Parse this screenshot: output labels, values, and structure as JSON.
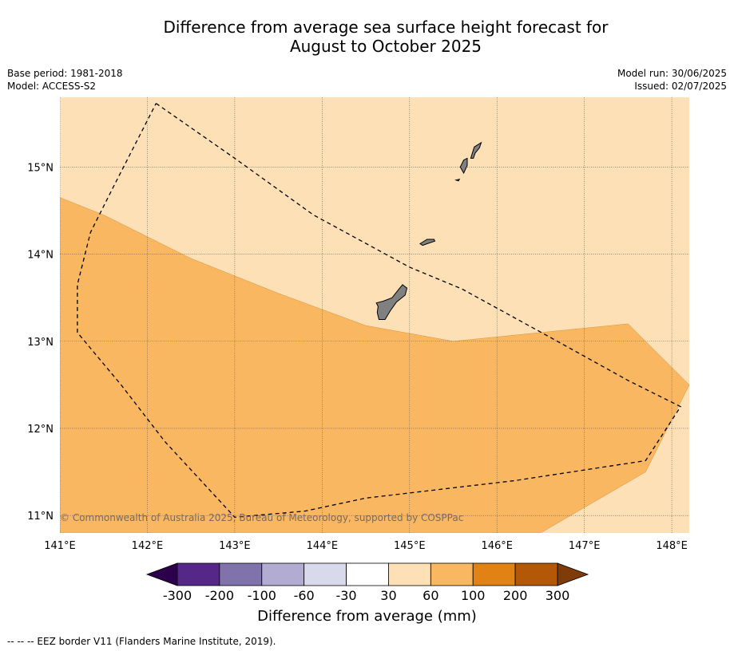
{
  "title_line1": "Difference from average sea surface height forecast for",
  "title_line2": "August to October 2025",
  "base_period": "Base period: 1981-2018",
  "model": "Model: ACCESS-S2",
  "model_run": "Model run: 30/06/2025",
  "issued": "Issued: 02/07/2025",
  "copyright": "© Commonwealth of Australia 2025, Bureau of Meteorology, supported by COSPPac",
  "colorbar_title": "Difference from average (mm)",
  "footnote": "--  --  -- EEZ border V11 (Flanders Marine Institute, 2019).",
  "map": {
    "lon_range": [
      141.0,
      148.2
    ],
    "lat_range": [
      10.8,
      15.8
    ],
    "lon_ticks": [
      {
        "value": 141,
        "label": "141°E"
      },
      {
        "value": 142,
        "label": "142°E"
      },
      {
        "value": 143,
        "label": "143°E"
      },
      {
        "value": 144,
        "label": "144°E"
      },
      {
        "value": 145,
        "label": "145°E"
      },
      {
        "value": 146,
        "label": "146°E"
      },
      {
        "value": 147,
        "label": "147°E"
      },
      {
        "value": 148,
        "label": "148°E"
      }
    ],
    "lat_ticks": [
      {
        "value": 15,
        "label": "15°N"
      },
      {
        "value": 14,
        "label": "14°N"
      },
      {
        "value": 13,
        "label": "13°N"
      },
      {
        "value": 12,
        "label": "12°N"
      },
      {
        "value": 11,
        "label": "11°N"
      }
    ],
    "zones": [
      {
        "name": "30 to 60 mm",
        "color": "#fde0b5"
      },
      {
        "name": "60 to 100 mm",
        "color": "#f9b762"
      }
    ],
    "zone_60_100_boundary": [
      [
        141.0,
        14.65
      ],
      [
        141.5,
        14.45
      ],
      [
        142.5,
        13.95
      ],
      [
        143.5,
        13.55
      ],
      [
        144.5,
        13.18
      ],
      [
        145.5,
        13.0
      ],
      [
        146.5,
        13.1
      ],
      [
        147.5,
        13.2
      ],
      [
        148.2,
        12.5
      ],
      [
        147.7,
        11.5
      ],
      [
        146.5,
        10.8
      ],
      [
        141.0,
        10.8
      ]
    ],
    "eez_border": [
      [
        142.1,
        15.73
      ],
      [
        143.0,
        15.1
      ],
      [
        143.9,
        14.45
      ],
      [
        145.0,
        13.85
      ],
      [
        145.6,
        13.6
      ],
      [
        146.6,
        13.05
      ],
      [
        147.5,
        12.55
      ],
      [
        148.1,
        12.25
      ],
      [
        147.7,
        11.63
      ],
      [
        146.2,
        11.4
      ],
      [
        144.5,
        11.2
      ],
      [
        143.8,
        11.05
      ],
      [
        143.0,
        10.98
      ],
      [
        142.2,
        11.85
      ],
      [
        141.7,
        12.5
      ],
      [
        141.2,
        13.1
      ],
      [
        141.2,
        13.65
      ],
      [
        141.35,
        14.25
      ],
      [
        141.6,
        14.75
      ],
      [
        142.1,
        15.73
      ]
    ],
    "islands": [
      {
        "name": "Guam",
        "points": [
          [
            144.62,
            13.44
          ],
          [
            144.7,
            13.46
          ],
          [
            144.8,
            13.5
          ],
          [
            144.88,
            13.6
          ],
          [
            144.92,
            13.65
          ],
          [
            144.97,
            13.61
          ],
          [
            144.95,
            13.53
          ],
          [
            144.85,
            13.45
          ],
          [
            144.78,
            13.35
          ],
          [
            144.72,
            13.25
          ],
          [
            144.65,
            13.25
          ],
          [
            144.63,
            13.33
          ],
          [
            144.64,
            13.4
          ]
        ]
      },
      {
        "name": "Rota",
        "points": [
          [
            145.12,
            14.12
          ],
          [
            145.2,
            14.17
          ],
          [
            145.28,
            14.17
          ],
          [
            145.29,
            14.15
          ],
          [
            145.2,
            14.12
          ],
          [
            145.15,
            14.1
          ]
        ]
      },
      {
        "name": "Tinian",
        "points": [
          [
            145.58,
            15.0
          ],
          [
            145.62,
            15.08
          ],
          [
            145.66,
            15.1
          ],
          [
            145.66,
            15.02
          ],
          [
            145.62,
            14.93
          ]
        ]
      },
      {
        "name": "Saipan",
        "points": [
          [
            145.7,
            15.1
          ],
          [
            145.74,
            15.23
          ],
          [
            145.82,
            15.28
          ],
          [
            145.8,
            15.22
          ],
          [
            145.75,
            15.16
          ],
          [
            145.73,
            15.1
          ]
        ]
      },
      {
        "name": "Aguijan",
        "points": [
          [
            145.53,
            14.85
          ],
          [
            145.57,
            14.86
          ],
          [
            145.56,
            14.84
          ]
        ]
      }
    ]
  },
  "colorbar": {
    "under_color": "#2d004b",
    "over_color": "#7f3b08",
    "bins": [
      {
        "range": "-300 to -200",
        "color": "#542788"
      },
      {
        "range": "-200 to -100",
        "color": "#8073ac"
      },
      {
        "range": "-100 to -60",
        "color": "#b2abd2"
      },
      {
        "range": "-60 to -30",
        "color": "#d8daeb"
      },
      {
        "range": "-30 to 30",
        "color": "#ffffff"
      },
      {
        "range": "30 to 60",
        "color": "#fde0b5"
      },
      {
        "range": "60 to 100",
        "color": "#f9b762"
      },
      {
        "range": "100 to 200",
        "color": "#e08214"
      },
      {
        "range": "200 to 300",
        "color": "#b35806"
      }
    ],
    "tick_labels": [
      "-300",
      "-200",
      "-100",
      "-60",
      "-30",
      "30",
      "60",
      "100",
      "200",
      "300"
    ]
  }
}
